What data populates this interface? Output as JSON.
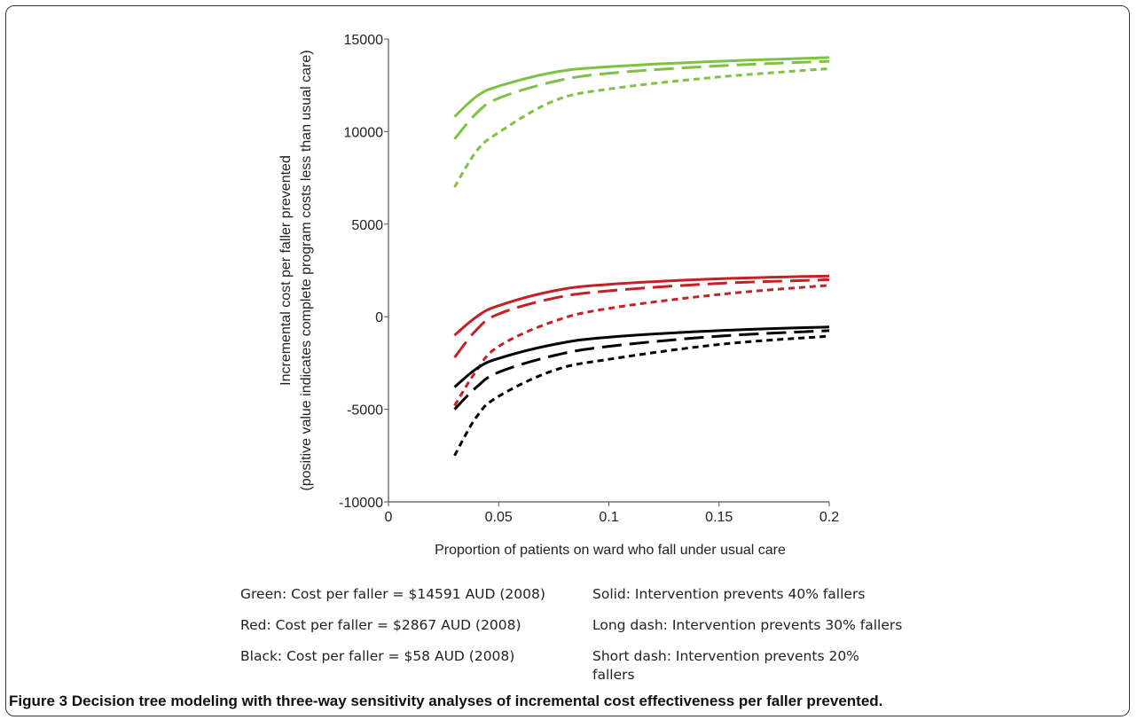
{
  "chart_data": {
    "type": "line",
    "xlabel": "Proportion of patients on ward who fall under usual care",
    "ylabel_line1": "Incremental cost per faller prevented",
    "ylabel_line2": "(positive value indicates complete program costs less than usual care)",
    "xlim": [
      0,
      0.2
    ],
    "ylim": [
      -10000,
      15000
    ],
    "x_ticks": [
      0,
      0.05,
      0.1,
      0.15,
      0.2
    ],
    "x_tick_labels": [
      "0",
      "0.05",
      "0.1",
      "0.15",
      "0.2"
    ],
    "y_ticks": [
      -10000,
      -5000,
      0,
      5000,
      10000,
      15000
    ],
    "y_tick_labels": [
      "-10000",
      "-5000",
      "0",
      "5000",
      "10000",
      "15000"
    ],
    "grid": false,
    "series_groups": [
      {
        "group": "Green",
        "color": "#7dc242",
        "cost_per_faller": 14591
      },
      {
        "group": "Red",
        "color": "#c42026",
        "cost_per_faller": 2867
      },
      {
        "group": "Black",
        "color": "#000000",
        "cost_per_faller": 58
      }
    ],
    "styles": [
      {
        "style": "solid",
        "prevention": 0.4
      },
      {
        "style": "long-dash",
        "prevention": 0.3
      },
      {
        "style": "short-dash",
        "prevention": 0.2
      }
    ],
    "series": [
      {
        "group": "Green",
        "style": "solid",
        "x": [
          0.03,
          0.04,
          0.05,
          0.075,
          0.1,
          0.15,
          0.2
        ],
        "values": [
          10800,
          11900,
          12450,
          13200,
          13500,
          13800,
          14000
        ]
      },
      {
        "group": "Green",
        "style": "long-dash",
        "x": [
          0.03,
          0.04,
          0.05,
          0.075,
          0.1,
          0.15,
          0.2
        ],
        "values": [
          9600,
          11000,
          11800,
          12700,
          13150,
          13550,
          13800
        ]
      },
      {
        "group": "Green",
        "style": "short-dash",
        "x": [
          0.03,
          0.04,
          0.05,
          0.075,
          0.1,
          0.15,
          0.2
        ],
        "values": [
          7000,
          8950,
          9950,
          11650,
          12300,
          12950,
          13400
        ]
      },
      {
        "group": "Red",
        "style": "solid",
        "x": [
          0.03,
          0.04,
          0.05,
          0.075,
          0.1,
          0.15,
          0.2
        ],
        "values": [
          -1000,
          0,
          600,
          1400,
          1750,
          2050,
          2200
        ]
      },
      {
        "group": "Red",
        "style": "long-dash",
        "x": [
          0.03,
          0.04,
          0.05,
          0.075,
          0.1,
          0.15,
          0.2
        ],
        "values": [
          -2200,
          -700,
          150,
          1000,
          1400,
          1800,
          2000
        ]
      },
      {
        "group": "Red",
        "style": "short-dash",
        "x": [
          0.03,
          0.04,
          0.05,
          0.075,
          0.1,
          0.15,
          0.2
        ],
        "values": [
          -4800,
          -2900,
          -1600,
          -250,
          450,
          1200,
          1700
        ]
      },
      {
        "group": "Black",
        "style": "solid",
        "x": [
          0.03,
          0.04,
          0.05,
          0.075,
          0.1,
          0.15,
          0.2
        ],
        "values": [
          -3800,
          -2800,
          -2250,
          -1500,
          -1100,
          -750,
          -550
        ]
      },
      {
        "group": "Black",
        "style": "long-dash",
        "x": [
          0.03,
          0.04,
          0.05,
          0.075,
          0.1,
          0.15,
          0.2
        ],
        "values": [
          -5000,
          -3800,
          -3000,
          -2100,
          -1600,
          -1050,
          -750
        ]
      },
      {
        "group": "Black",
        "style": "short-dash",
        "x": [
          0.03,
          0.04,
          0.05,
          0.075,
          0.1,
          0.15,
          0.2
        ],
        "values": [
          -7500,
          -5400,
          -4300,
          -2900,
          -2300,
          -1500,
          -1050
        ]
      }
    ]
  },
  "legend": {
    "left": [
      "Green: Cost per faller = $14591 AUD (2008)",
      "Red: Cost per faller = $2867 AUD (2008)",
      "Black: Cost per faller = $58 AUD (2008)"
    ],
    "right": [
      "Solid: Intervention prevents 40% fallers",
      "Long dash: Intervention prevents 30% fallers",
      "Short dash: Intervention prevents 20%",
      "fallers"
    ]
  },
  "caption": {
    "label": "Figure 3",
    "text": "Decision tree modeling with three-way sensitivity analyses of incremental cost effectiveness per faller prevented."
  }
}
